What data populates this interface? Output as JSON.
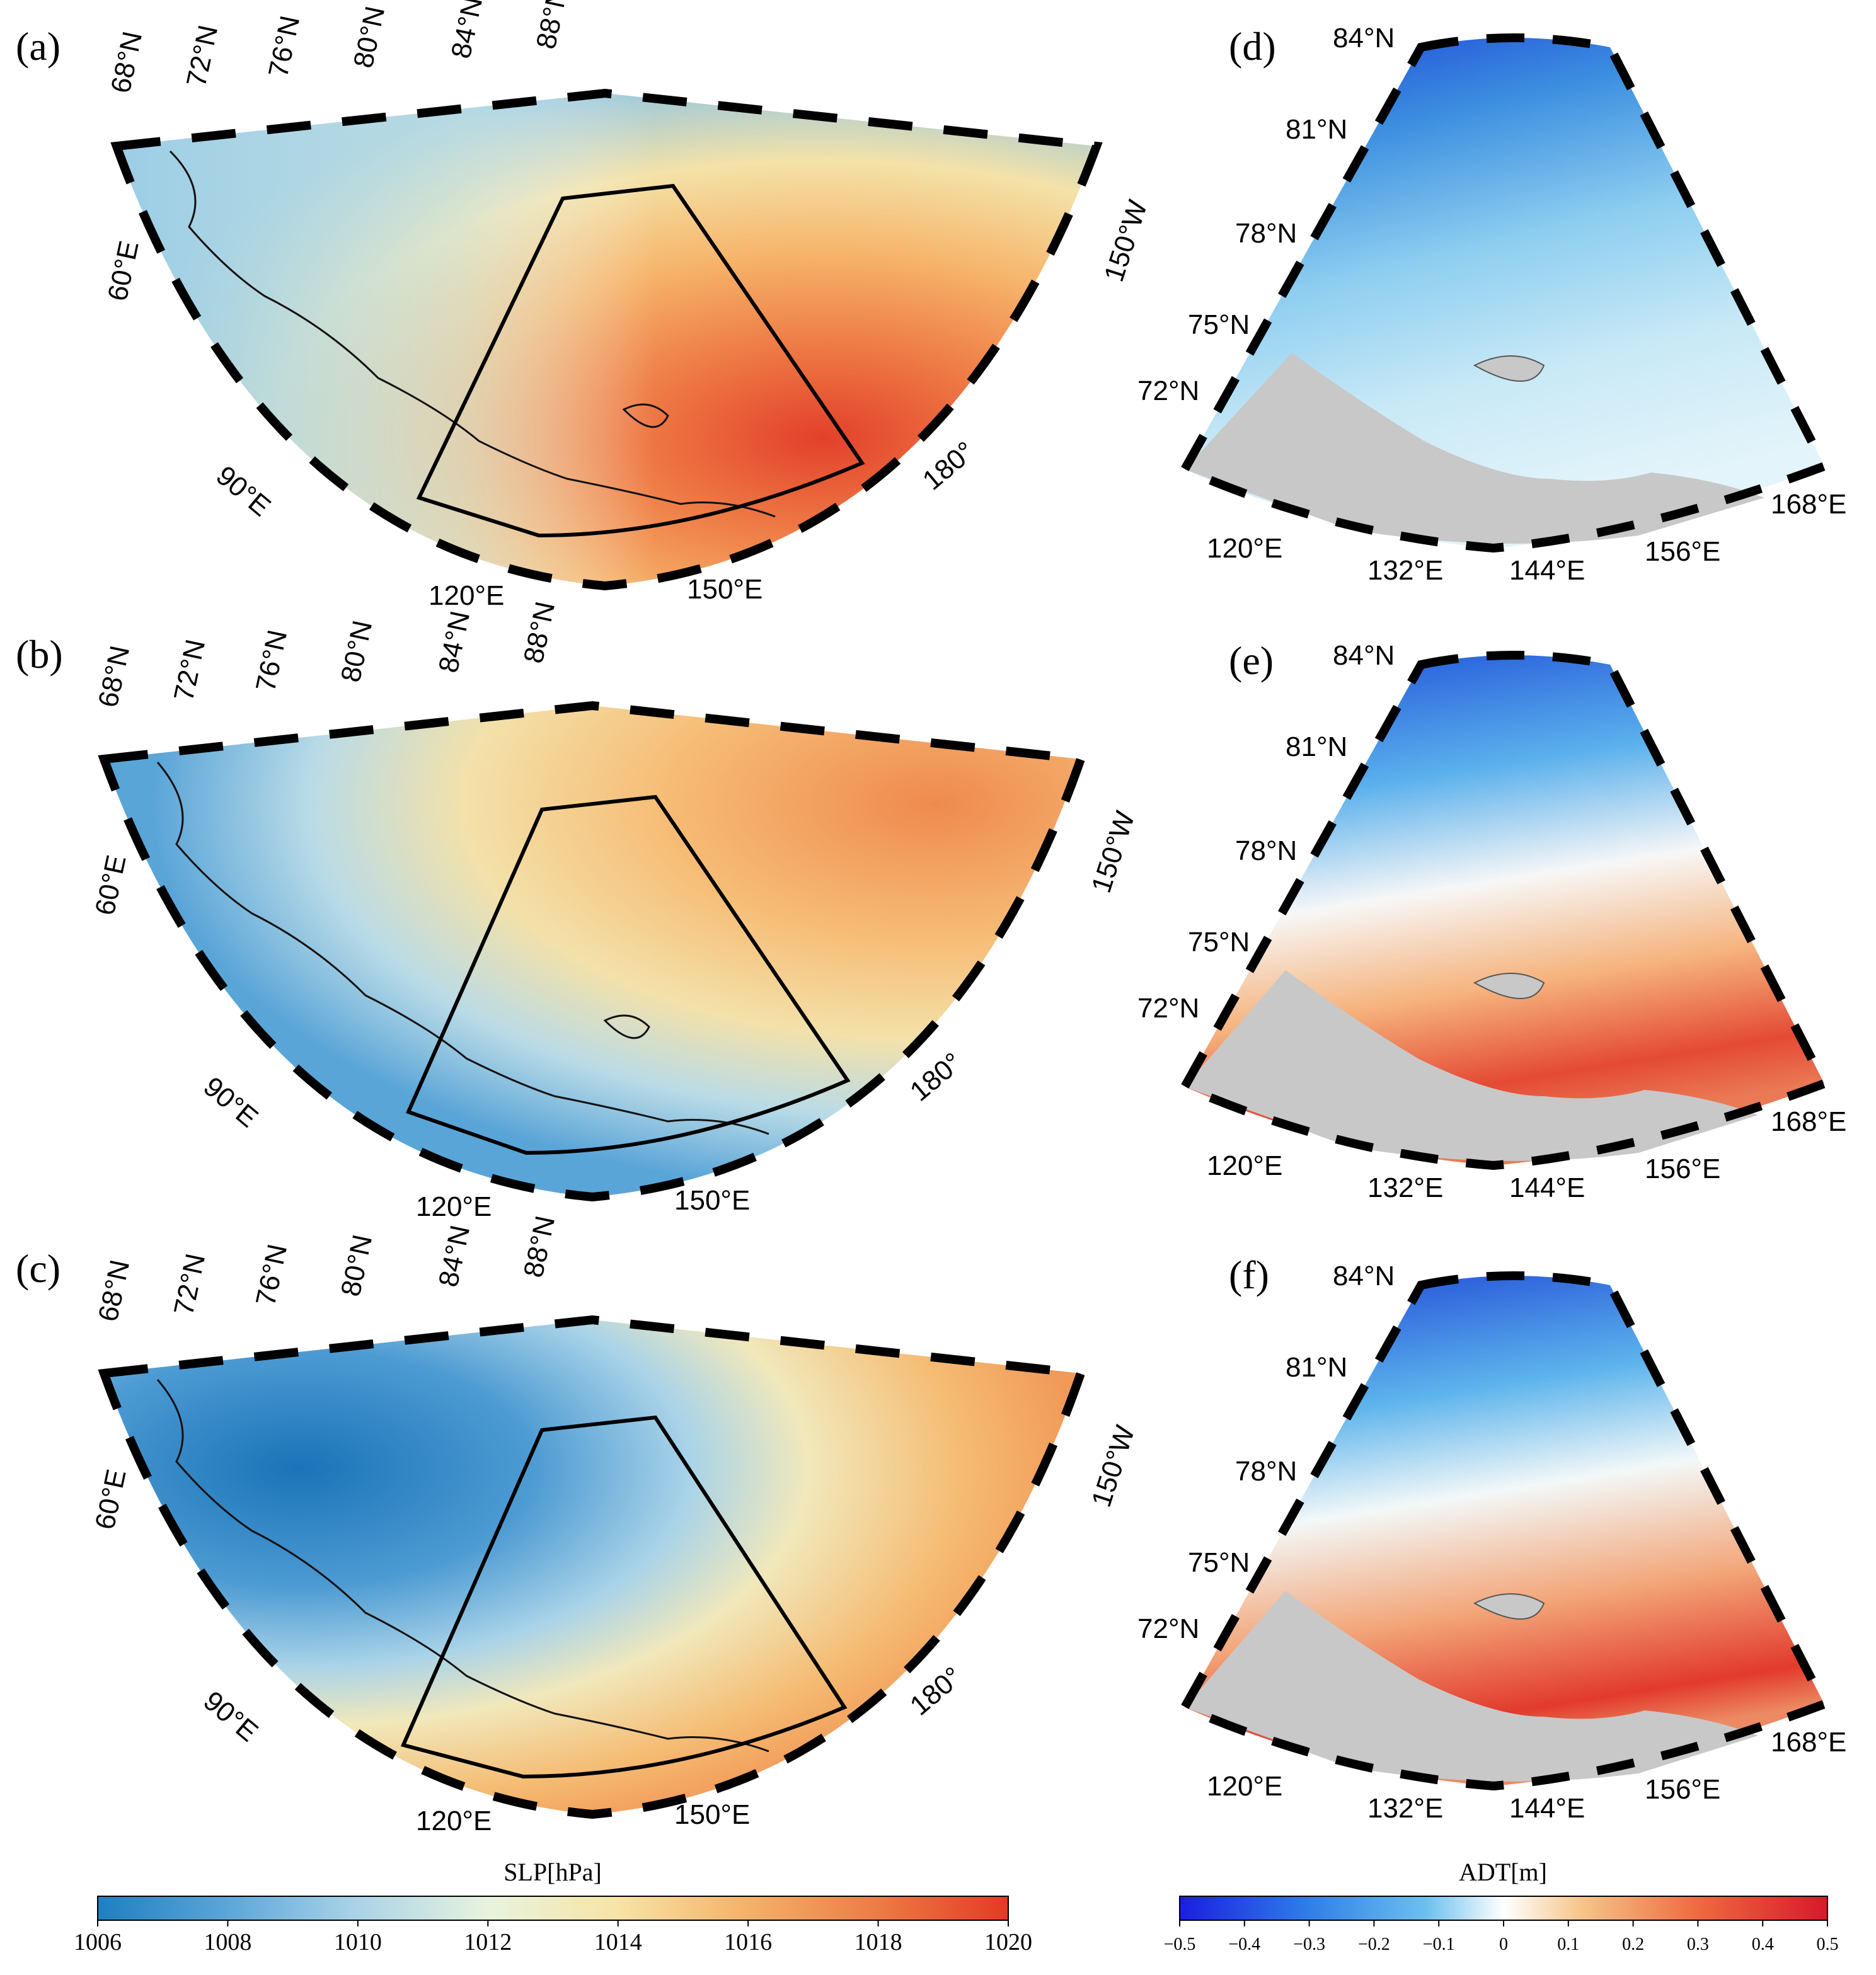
{
  "panels": {
    "a": {
      "label": "(a)"
    },
    "b": {
      "label": "(b)"
    },
    "c": {
      "label": "(c)"
    },
    "d": {
      "label": "(d)"
    },
    "e": {
      "label": "(e)"
    },
    "f": {
      "label": "(f)"
    }
  },
  "slp_panel_ticks": {
    "lat": [
      "68°N",
      "72°N",
      "76°N",
      "80°N",
      "84°N",
      "88°N"
    ],
    "lon": [
      "60°E",
      "90°E",
      "120°E",
      "150°E",
      "180°",
      "150°W"
    ]
  },
  "adt_panel_ticks": {
    "lat": [
      "84°N",
      "81°N",
      "78°N",
      "75°N",
      "72°N"
    ],
    "lon": [
      "120°E",
      "132°E",
      "144°E",
      "156°E",
      "168°E"
    ]
  },
  "colorbars": {
    "slp": {
      "title": "SLP[hPa]",
      "ticks": [
        "1006",
        "1008",
        "1010",
        "1012",
        "1014",
        "1016",
        "1018",
        "1020"
      ],
      "colors": [
        "#1f7fc0",
        "#5aa5d8",
        "#a8d2e8",
        "#e8f3de",
        "#f7e4a6",
        "#f4b36a",
        "#ec7a44",
        "#e33a25"
      ]
    },
    "adt": {
      "title": "ADT[m]",
      "ticks": [
        "−0.5",
        "−0.4",
        "−0.3",
        "−0.2",
        "−0.1",
        "0",
        "0.1",
        "0.2",
        "0.3",
        "0.4",
        "0.5"
      ],
      "colors": [
        "#1a1ee0",
        "#2f7fe8",
        "#6cc0ee",
        "#ffffff",
        "#f6c58a",
        "#ee6a40",
        "#d8182a"
      ]
    }
  }
}
